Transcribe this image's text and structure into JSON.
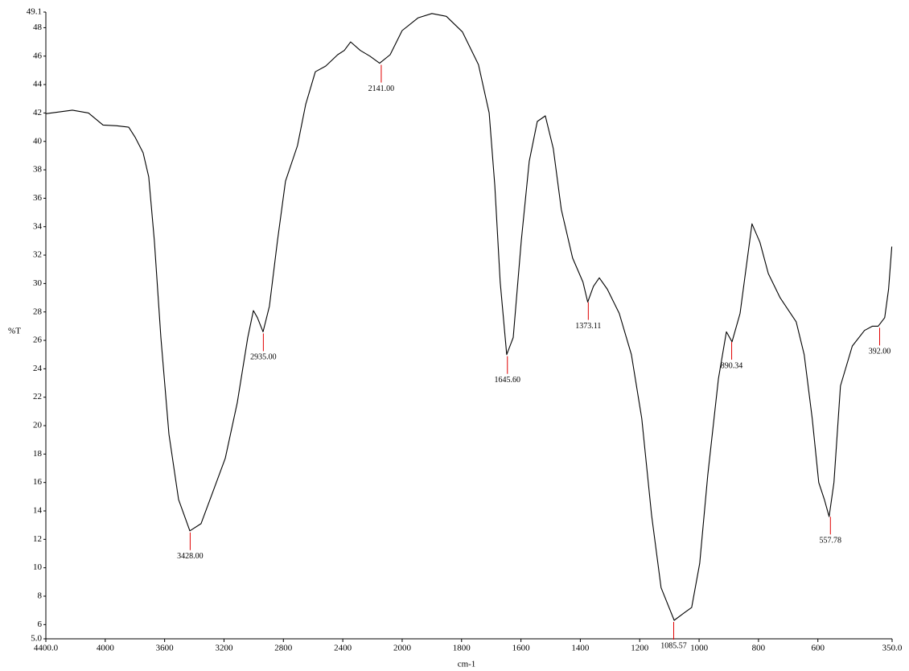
{
  "chart_data": {
    "type": "line",
    "xlabel": "cm-1",
    "ylabel": "%T",
    "xlim": [
      4400,
      350
    ],
    "ylim": [
      5,
      49.1
    ],
    "xscale": {
      "break": 2000,
      "factor": 2
    },
    "xticks": [
      {
        "value": 4400,
        "label": "4400.0"
      },
      4000,
      3600,
      3200,
      2800,
      2400,
      2000,
      1800,
      1600,
      1400,
      1200,
      1000,
      800,
      600,
      {
        "value": 350,
        "label": "350.0"
      }
    ],
    "yticks": [
      {
        "value": 5,
        "label": "5.0"
      },
      6,
      8,
      10,
      12,
      14,
      16,
      18,
      20,
      22,
      24,
      26,
      28,
      30,
      32,
      34,
      36,
      38,
      40,
      42,
      44,
      46,
      48,
      49.1
    ],
    "color": "#000000",
    "peak_color": "#e00000",
    "x": [
      4400,
      4221,
      4113,
      4015,
      3923,
      3842,
      3799,
      3745,
      3707,
      3669,
      3625,
      3571,
      3506,
      3430,
      3355,
      3273,
      3192,
      3111,
      3040,
      3002,
      2975,
      2937,
      2894,
      2840,
      2786,
      2705,
      2650,
      2585,
      2515,
      2434,
      2390,
      2347,
      2282,
      2217,
      2152,
      2081,
      2000,
      1946,
      1900,
      1851,
      1797,
      1743,
      1707,
      1688,
      1670,
      1648,
      1626,
      1599,
      1572,
      1545,
      1518,
      1491,
      1464,
      1426,
      1391,
      1375,
      1356,
      1336,
      1309,
      1269,
      1228,
      1193,
      1160,
      1128,
      1084,
      1052,
      1025,
      998,
      971,
      935,
      908,
      889,
      862,
      822,
      795,
      767,
      727,
      673,
      646,
      619,
      597,
      578,
      562,
      546,
      524,
      484,
      443,
      416,
      397,
      375,
      362,
      351
    ],
    "values": [
      41.95,
      42.2,
      42.0,
      41.15,
      41.1,
      41.0,
      40.3,
      39.2,
      37.5,
      33.0,
      26.2,
      19.4,
      14.8,
      12.6,
      13.1,
      15.4,
      17.7,
      21.6,
      26.2,
      28.1,
      27.6,
      26.6,
      28.4,
      33.0,
      37.2,
      39.7,
      42.6,
      44.9,
      45.3,
      46.1,
      46.4,
      47.0,
      46.4,
      46.0,
      45.5,
      46.1,
      47.8,
      48.7,
      49.0,
      48.8,
      47.7,
      45.4,
      42.0,
      36.9,
      30.1,
      25.0,
      26.2,
      33.0,
      38.6,
      41.4,
      41.8,
      39.5,
      35.2,
      31.8,
      30.1,
      28.7,
      29.8,
      30.4,
      29.6,
      27.9,
      25.0,
      20.5,
      13.7,
      8.6,
      6.3,
      6.8,
      7.2,
      10.3,
      16.5,
      23.3,
      26.6,
      25.9,
      27.9,
      34.2,
      32.9,
      30.7,
      29.0,
      27.3,
      25.0,
      20.5,
      16.0,
      14.8,
      13.6,
      16.0,
      22.8,
      25.6,
      26.7,
      27.0,
      27.0,
      27.6,
      29.6,
      32.6
    ],
    "peaks": [
      {
        "value": 3428,
        "label": "3428.00",
        "y": 12.6
      },
      {
        "value": 2935,
        "label": "2935.00",
        "y": 26.6
      },
      {
        "value": 2141,
        "label": "2141.00",
        "y": 45.5
      },
      {
        "value": 1645.6,
        "label": "1645.60",
        "y": 25.0
      },
      {
        "value": 1373.11,
        "label": "1373.11",
        "y": 28.8
      },
      {
        "value": 1085.57,
        "label": "1085.57",
        "y": 6.3
      },
      {
        "value": 890.34,
        "label": "890.34",
        "y": 26.0
      },
      {
        "value": 557.78,
        "label": "557.78",
        "y": 13.7
      },
      {
        "value": 392,
        "label": "392.00",
        "y": 27.0
      }
    ]
  }
}
